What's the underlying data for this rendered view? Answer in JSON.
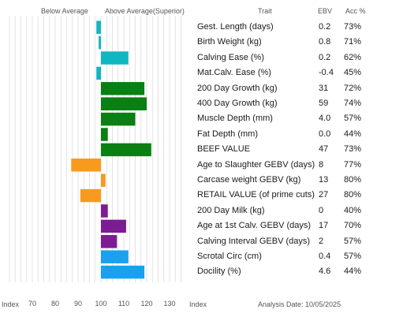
{
  "header": {
    "below_average": "Below Average",
    "above_average": "Above Average(Superior)",
    "trait": "Trait",
    "ebv": "EBV",
    "acc": "Acc %"
  },
  "footer": {
    "index_left": "Index",
    "index_right": "Index",
    "analysis_date": "Analysis Date: 10/05/2025"
  },
  "colors": {
    "calving": "#12b6c1",
    "growth": "#0a7f13",
    "carcase": "#f79a1e",
    "milk": "#7b1c93",
    "other": "#19a0f0",
    "grid": "#dcdcdc"
  },
  "chart_data": {
    "type": "bar",
    "orientation": "horizontal",
    "xlim": [
      60,
      140
    ],
    "xticks": [
      "70",
      "80",
      "90",
      "100",
      "110",
      "120",
      "130"
    ],
    "baseline": 100,
    "grid": true,
    "rows": [
      {
        "trait": "Gest. Length (days)",
        "index": 98,
        "ebv": "0.2",
        "acc": "73%",
        "group": "calving"
      },
      {
        "trait": "Birth Weight (kg)",
        "index": 99,
        "ebv": "0.8",
        "acc": "71%",
        "group": "calving"
      },
      {
        "trait": "Calving Ease (%)",
        "index": 112,
        "ebv": "0.2",
        "acc": "62%",
        "group": "calving"
      },
      {
        "trait": "Mat.Calv. Ease (%)",
        "index": 98,
        "ebv": "-0.4",
        "acc": "45%",
        "group": "calving"
      },
      {
        "trait": "200 Day Growth (kg)",
        "index": 119,
        "ebv": "31",
        "acc": "72%",
        "group": "growth"
      },
      {
        "trait": "400 Day Growth (kg)",
        "index": 120,
        "ebv": "59",
        "acc": "74%",
        "group": "growth"
      },
      {
        "trait": "Muscle Depth (mm)",
        "index": 115,
        "ebv": "4.0",
        "acc": "57%",
        "group": "growth"
      },
      {
        "trait": "Fat Depth (mm)",
        "index": 103,
        "ebv": "0.0",
        "acc": "44%",
        "group": "growth"
      },
      {
        "trait": "BEEF VALUE",
        "index": 122,
        "ebv": "47",
        "acc": "73%",
        "group": "growth"
      },
      {
        "trait": "Age to Slaughter GEBV (days)",
        "index": 87,
        "ebv": "8",
        "acc": "77%",
        "group": "carcase"
      },
      {
        "trait": "Carcase weight GEBV (kg)",
        "index": 102,
        "ebv": "13",
        "acc": "80%",
        "group": "carcase"
      },
      {
        "trait": "RETAIL VALUE (of prime cuts)",
        "index": 91,
        "ebv": "27",
        "acc": "80%",
        "group": "carcase"
      },
      {
        "trait": "200 Day Milk (kg)",
        "index": 103,
        "ebv": "0",
        "acc": "40%",
        "group": "milk"
      },
      {
        "trait": "Age at 1st Calv. GEBV (days)",
        "index": 111,
        "ebv": "17",
        "acc": "70%",
        "group": "milk"
      },
      {
        "trait": "Calving Interval GEBV (days)",
        "index": 107,
        "ebv": "2",
        "acc": "57%",
        "group": "milk"
      },
      {
        "trait": "Scrotal Circ (cm)",
        "index": 112,
        "ebv": "0.4",
        "acc": "57%",
        "group": "other"
      },
      {
        "trait": "Docility (%)",
        "index": 119,
        "ebv": "4.6",
        "acc": "44%",
        "group": "other"
      }
    ]
  }
}
